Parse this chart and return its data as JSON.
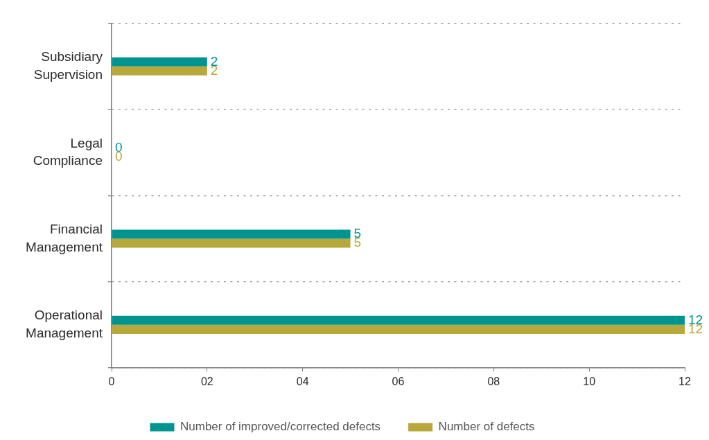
{
  "chart_data": {
    "type": "bar",
    "orientation": "horizontal",
    "categories": [
      "Subsidiary Supervision",
      "Legal Compliance",
      "Financial Management",
      "Operational Management"
    ],
    "series": [
      {
        "name": "Number of improved/corrected defects",
        "color": "#009490",
        "values": [
          2,
          0,
          5,
          12
        ]
      },
      {
        "name": "Number of defects",
        "color": "#b8a73a",
        "values": [
          2,
          0,
          5,
          12
        ]
      }
    ],
    "xlim": [
      0,
      12
    ],
    "xticks": [
      0,
      {
        "value": 2,
        "label": "02"
      },
      {
        "value": 4,
        "label": "04"
      },
      {
        "value": 6,
        "label": "06"
      },
      {
        "value": 8,
        "label": "08"
      },
      10,
      12
    ],
    "grid": "y",
    "legend": "bottom",
    "data_labels": true
  }
}
